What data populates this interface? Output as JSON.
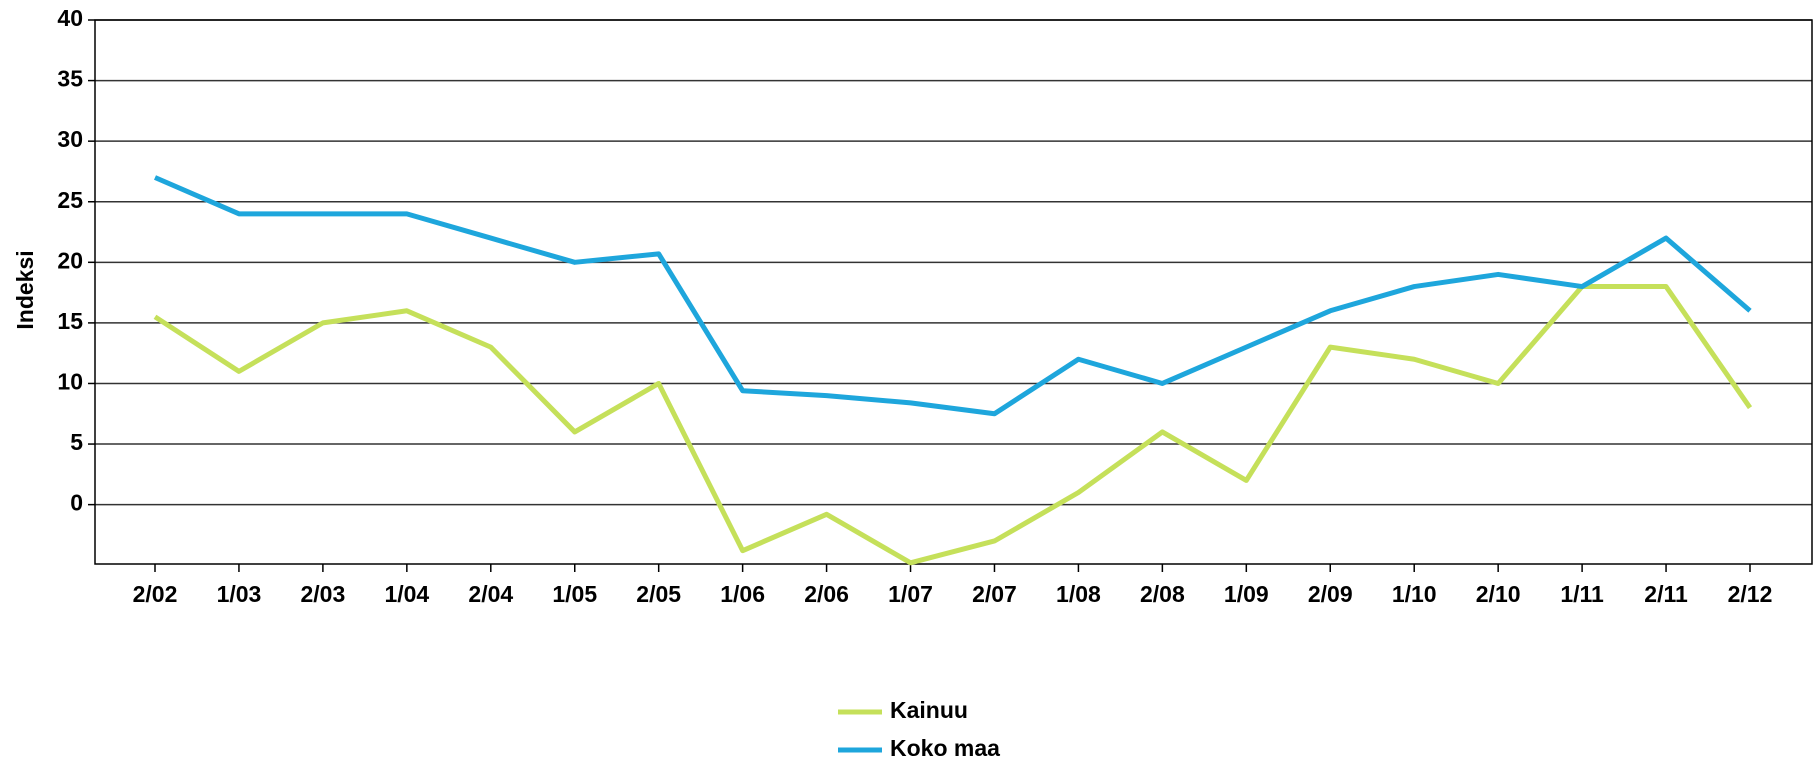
{
  "chart_data": {
    "type": "line",
    "y_label": "Indeksi",
    "categories": [
      "2/02",
      "1/03",
      "2/03",
      "1/04",
      "2/04",
      "1/05",
      "2/05",
      "1/06",
      "2/06",
      "1/07",
      "2/07",
      "1/08",
      "2/08",
      "1/09",
      "2/09",
      "1/10",
      "2/10",
      "1/11",
      "2/11",
      "2/12"
    ],
    "series": [
      {
        "name": "Kainuu",
        "color": "#c5e05a",
        "values": [
          15.5,
          11,
          15,
          16,
          13,
          6,
          10,
          -3.8,
          -0.8,
          -4.8,
          -3,
          1,
          6,
          2,
          13,
          12,
          10,
          18,
          18,
          8
        ]
      },
      {
        "name": "Koko maa",
        "color": "#1ea6dc",
        "values": [
          27,
          24,
          24,
          24,
          22,
          20,
          20.7,
          9.4,
          9,
          8.4,
          7.5,
          12,
          10,
          13,
          16,
          18,
          19,
          18,
          22,
          16
        ]
      }
    ],
    "ylim": [
      -4.9,
      40
    ],
    "yticks": [
      0,
      5,
      10,
      15,
      20,
      25,
      30,
      35,
      40
    ],
    "grid": true
  }
}
